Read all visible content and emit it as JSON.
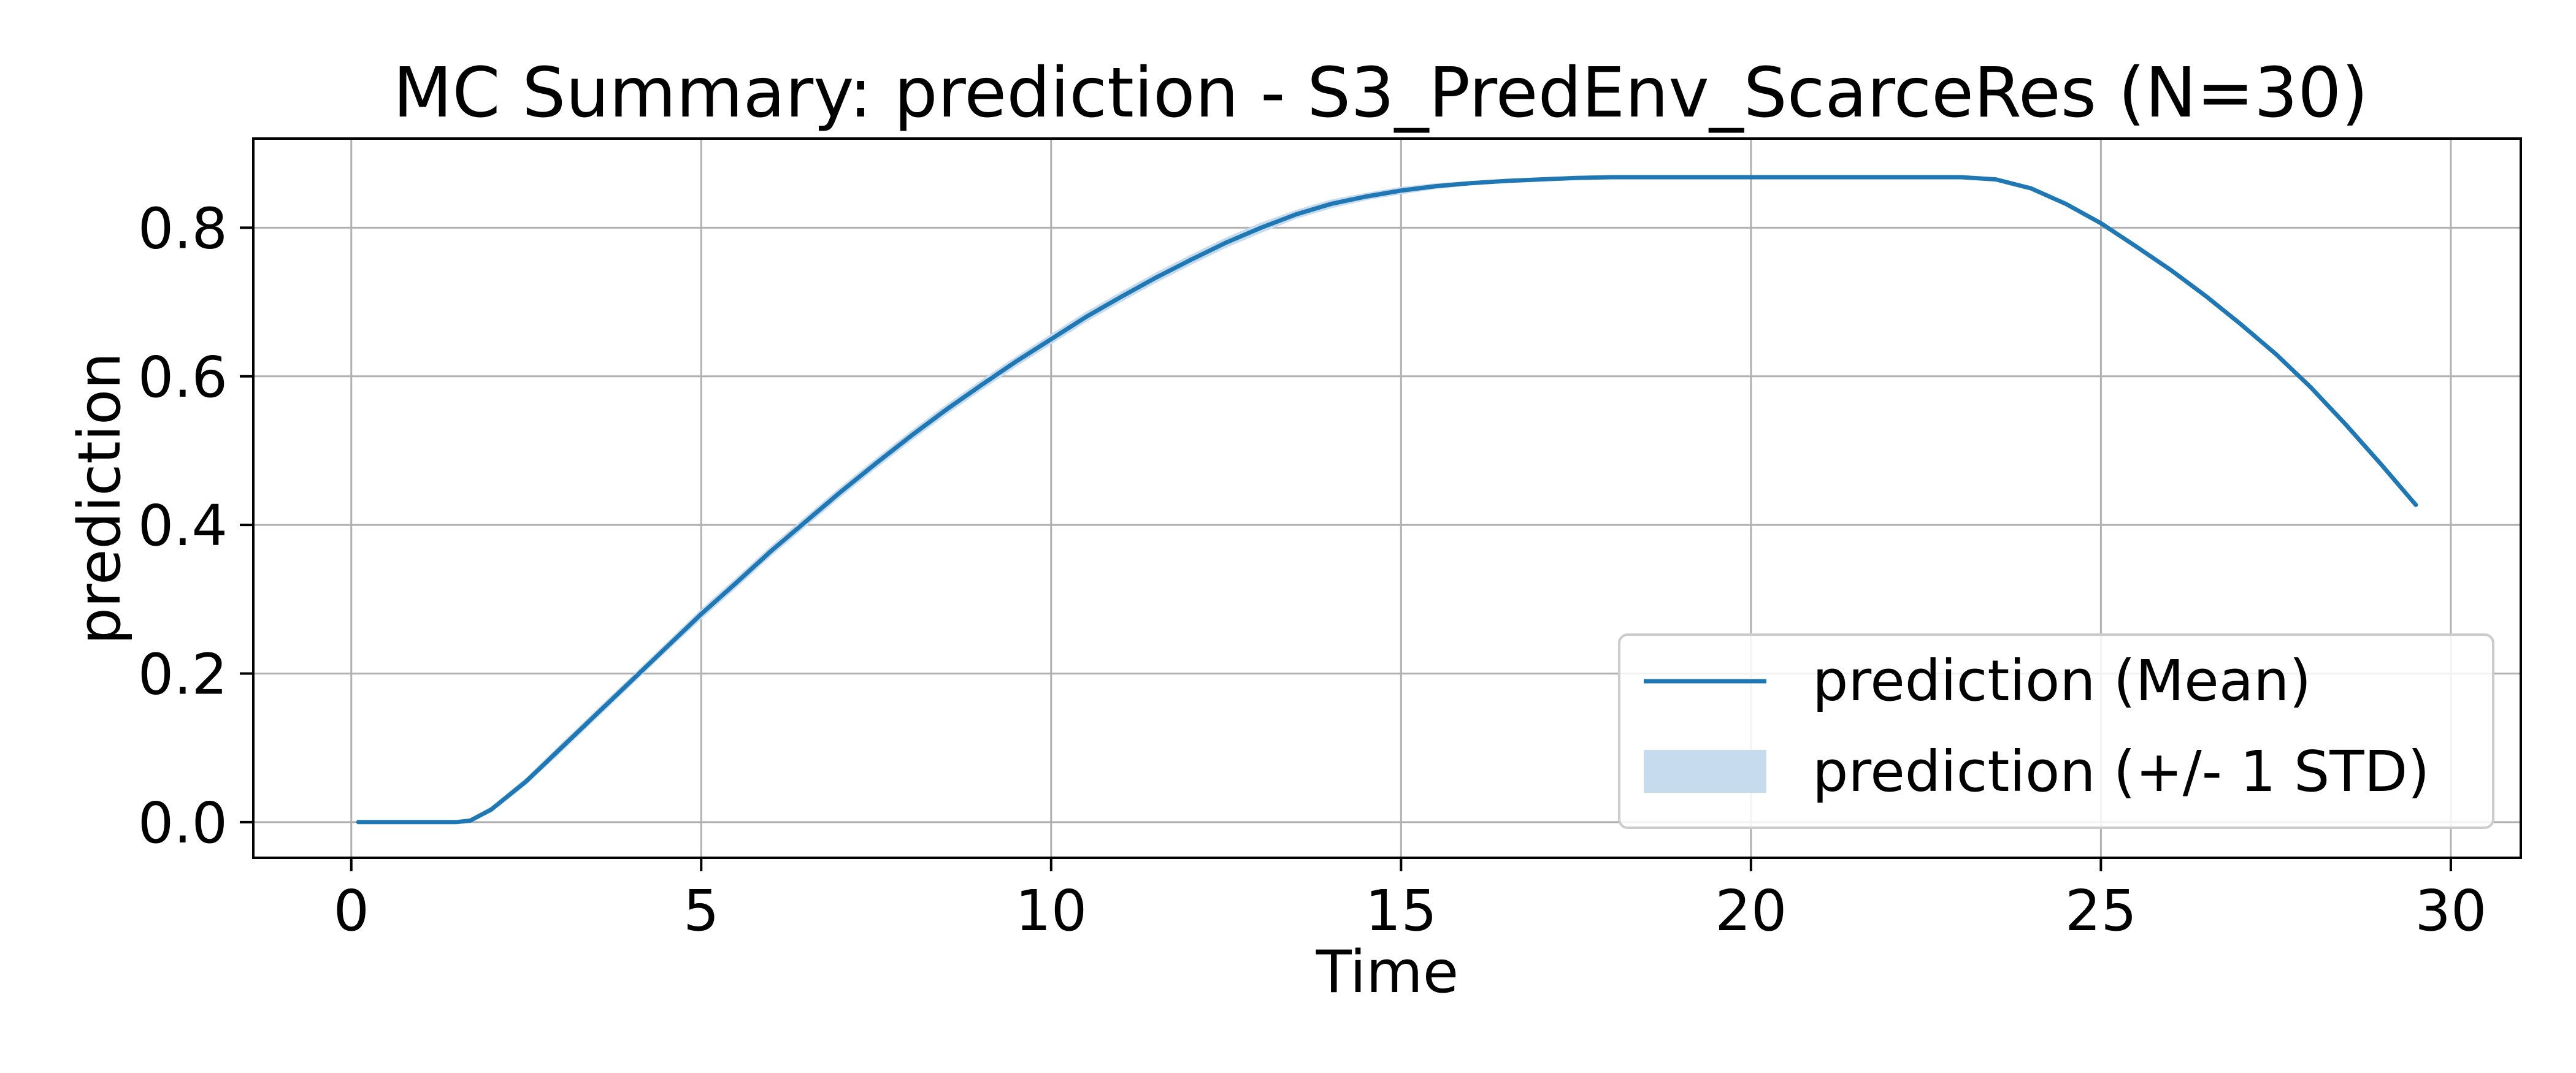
{
  "chart_data": {
    "type": "line",
    "title": "MC Summary: prediction - S3_PredEnv_ScarceRes (N=30)",
    "xlabel": "Time",
    "ylabel": "prediction",
    "xlim": [
      -1.4,
      31.0
    ],
    "ylim": [
      -0.048,
      0.92
    ],
    "xticks": [
      0,
      5,
      10,
      15,
      20,
      25,
      30
    ],
    "yticks": [
      0.0,
      0.2,
      0.4,
      0.6,
      0.8
    ],
    "xtick_labels": [
      "0",
      "5",
      "10",
      "15",
      "20",
      "25",
      "30"
    ],
    "ytick_labels": [
      "0.0",
      "0.2",
      "0.4",
      "0.6",
      "0.8"
    ],
    "grid": true,
    "legend_position": "bottom-right",
    "colors": {
      "line": "#1f77b4",
      "band": "#c6dbed"
    },
    "series": [
      {
        "name": "prediction (Mean)",
        "kind": "line",
        "x": [
          0.1,
          0.5,
          1.0,
          1.5,
          1.7,
          2.0,
          2.5,
          3.0,
          3.5,
          4.0,
          4.5,
          5.0,
          5.5,
          6.0,
          6.5,
          7.0,
          7.5,
          8.0,
          8.5,
          9.0,
          9.5,
          10.0,
          10.5,
          11.0,
          11.5,
          12.0,
          12.5,
          13.0,
          13.5,
          14.0,
          14.5,
          15.0,
          15.5,
          16.0,
          16.5,
          17.0,
          17.5,
          18.0,
          19.0,
          20.0,
          21.0,
          22.0,
          23.0,
          23.5,
          24.0,
          24.5,
          25.0,
          25.5,
          26.0,
          26.5,
          27.0,
          27.5,
          28.0,
          28.5,
          29.0,
          29.5
        ],
        "y": [
          0.0,
          0.0,
          0.0,
          0.0,
          0.002,
          0.017,
          0.055,
          0.1,
          0.145,
          0.19,
          0.235,
          0.28,
          0.322,
          0.365,
          0.405,
          0.445,
          0.483,
          0.52,
          0.555,
          0.588,
          0.62,
          0.65,
          0.68,
          0.707,
          0.733,
          0.757,
          0.78,
          0.8,
          0.818,
          0.832,
          0.842,
          0.85,
          0.856,
          0.86,
          0.863,
          0.865,
          0.867,
          0.868,
          0.868,
          0.868,
          0.868,
          0.868,
          0.868,
          0.865,
          0.853,
          0.832,
          0.806,
          0.775,
          0.743,
          0.708,
          0.67,
          0.63,
          0.585,
          0.535,
          0.482,
          0.427
        ]
      },
      {
        "name": "prediction (+/- 1 STD)",
        "kind": "band",
        "x": [
          0.1,
          0.5,
          1.0,
          1.5,
          1.7,
          2.0,
          2.5,
          3.0,
          3.5,
          4.0,
          4.5,
          5.0,
          5.5,
          6.0,
          6.5,
          7.0,
          7.5,
          8.0,
          8.5,
          9.0,
          9.5,
          10.0,
          10.5,
          11.0,
          11.5,
          12.0,
          12.5,
          13.0,
          13.5,
          14.0,
          14.5,
          15.0,
          15.5,
          16.0,
          16.5,
          17.0,
          17.5,
          18.0,
          19.0,
          20.0,
          21.0,
          22.0,
          23.0,
          23.5,
          24.0,
          24.5,
          25.0,
          25.5,
          26.0,
          26.5,
          27.0,
          27.5,
          28.0,
          28.5,
          29.0,
          29.5
        ],
        "y_lower": [
          0.0,
          0.0,
          0.0,
          0.0,
          0.0,
          0.013,
          0.05,
          0.094,
          0.139,
          0.184,
          0.229,
          0.273,
          0.315,
          0.358,
          0.398,
          0.438,
          0.476,
          0.513,
          0.548,
          0.581,
          0.613,
          0.643,
          0.673,
          0.7,
          0.726,
          0.75,
          0.773,
          0.793,
          0.812,
          0.826,
          0.837,
          0.845,
          0.852,
          0.857,
          0.861,
          0.863,
          0.866,
          0.867,
          0.867,
          0.867,
          0.867,
          0.867,
          0.867,
          0.864,
          0.852,
          0.831,
          0.805,
          0.774,
          0.742,
          0.707,
          0.669,
          0.629,
          0.584,
          0.534,
          0.481,
          0.426
        ],
        "y_upper": [
          0.0,
          0.0,
          0.0,
          0.0,
          0.004,
          0.021,
          0.06,
          0.106,
          0.151,
          0.196,
          0.241,
          0.287,
          0.329,
          0.372,
          0.412,
          0.452,
          0.49,
          0.527,
          0.562,
          0.595,
          0.627,
          0.657,
          0.687,
          0.714,
          0.74,
          0.764,
          0.787,
          0.807,
          0.824,
          0.838,
          0.847,
          0.855,
          0.86,
          0.863,
          0.865,
          0.867,
          0.868,
          0.869,
          0.869,
          0.869,
          0.869,
          0.869,
          0.869,
          0.866,
          0.854,
          0.833,
          0.807,
          0.776,
          0.744,
          0.709,
          0.671,
          0.631,
          0.586,
          0.536,
          0.483,
          0.428
        ]
      }
    ]
  }
}
